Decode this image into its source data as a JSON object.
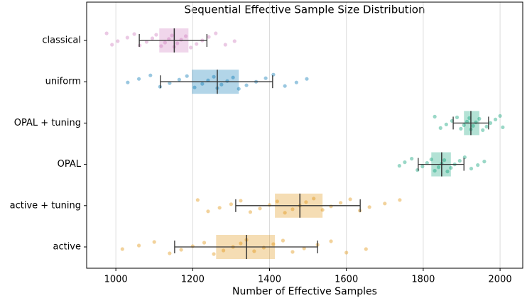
{
  "chart_data": {
    "type": "strip_box",
    "title": "Sequential Effective Sample Size Distribution",
    "xlabel": "Number of Effective Samples",
    "categories": [
      "classical",
      "uniform",
      "OPAL + tuning",
      "OPAL",
      "active + tuning",
      "active"
    ],
    "groups": [
      {
        "color": "#cc78bc",
        "box": [
          1113,
          1189
        ],
        "median": 1152,
        "whiskers": [
          1061,
          1237
        ],
        "points": [
          976,
          990,
          1005,
          1030,
          1048,
          1062,
          1080,
          1095,
          1105,
          1118,
          1128,
          1138,
          1146,
          1152,
          1160,
          1170,
          1182,
          1195,
          1210,
          1225,
          1242,
          1260,
          1285,
          1309
        ]
      },
      {
        "color": "#0173b2",
        "box": [
          1198,
          1320
        ],
        "median": 1264,
        "whiskers": [
          1116,
          1408
        ],
        "points": [
          1031,
          1060,
          1090,
          1115,
          1140,
          1165,
          1185,
          1205,
          1225,
          1240,
          1255,
          1264,
          1275,
          1290,
          1305,
          1320,
          1340,
          1365,
          1390,
          1410,
          1440,
          1470,
          1497
        ]
      },
      {
        "color": "#029e73",
        "box": [
          1906,
          1946
        ],
        "median": 1924,
        "whiskers": [
          1878,
          1970
        ],
        "points": [
          1830,
          1845,
          1860,
          1875,
          1888,
          1898,
          1906,
          1914,
          1920,
          1924,
          1930,
          1937,
          1946,
          1955,
          1965,
          1975,
          1988,
          2000,
          2007
        ]
      },
      {
        "color": "#029e73",
        "box": [
          1821,
          1872
        ],
        "median": 1848,
        "whiskers": [
          1787,
          1906
        ],
        "points": [
          1738,
          1752,
          1770,
          1785,
          1798,
          1810,
          1821,
          1830,
          1840,
          1848,
          1855,
          1863,
          1872,
          1882,
          1895,
          1908,
          1925,
          1942,
          1959
        ]
      },
      {
        "color": "#de8f05",
        "box": [
          1414,
          1538
        ],
        "median": 1479,
        "whiskers": [
          1312,
          1636
        ],
        "points": [
          1213,
          1240,
          1270,
          1300,
          1325,
          1350,
          1375,
          1400,
          1420,
          1440,
          1460,
          1479,
          1495,
          1515,
          1538,
          1560,
          1585,
          1610,
          1635,
          1660,
          1700,
          1739
        ]
      },
      {
        "color": "#de8f05",
        "box": [
          1261,
          1414
        ],
        "median": 1340,
        "whiskers": [
          1153,
          1525
        ],
        "points": [
          1017,
          1060,
          1100,
          1140,
          1170,
          1200,
          1230,
          1255,
          1280,
          1305,
          1325,
          1340,
          1360,
          1385,
          1410,
          1435,
          1460,
          1490,
          1525,
          1560,
          1600,
          1651
        ]
      }
    ],
    "xlim": [
      924,
      2059
    ],
    "xticks": [
      1000,
      1200,
      1400,
      1600,
      1800,
      2000
    ],
    "grid": true
  }
}
